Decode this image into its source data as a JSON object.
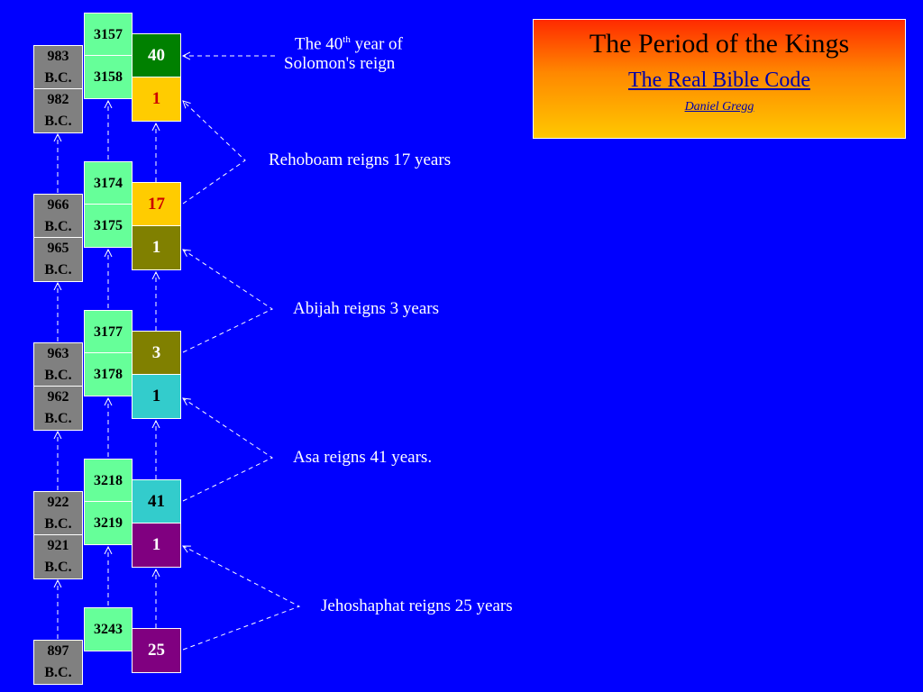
{
  "title": {
    "heading": "The Period of the Kings",
    "subtitle": "The Real Bible Code",
    "author": "Daniel Gregg"
  },
  "colors": {
    "background": "#0000ff",
    "bc_box": "#808080",
    "am_box": "#66ff99"
  },
  "groups": [
    {
      "bc": [
        [
          "983",
          "B.C."
        ],
        [
          "982",
          "B.C."
        ]
      ],
      "am": [
        "3157",
        "3158"
      ],
      "reign": [
        {
          "value": "40",
          "color": "#008000",
          "text": "#ffffff"
        },
        {
          "value": "1",
          "color": "#ffcc00",
          "text": "#cc0000"
        }
      ],
      "label_parts": {
        "pre": "The  40",
        "sup": "th",
        "post": "  year  of",
        "line2": "Solomon's reign"
      }
    },
    {
      "bc": [
        [
          "966",
          "B.C."
        ],
        [
          "965",
          "B.C."
        ]
      ],
      "am": [
        "3174",
        "3175"
      ],
      "reign": [
        {
          "value": "17",
          "color": "#ffcc00",
          "text": "#cc0000"
        },
        {
          "value": "1",
          "color": "#808000",
          "text": "#ffffff"
        }
      ],
      "label": "Rehoboam reigns 17 years"
    },
    {
      "bc": [
        [
          "963",
          "B.C."
        ],
        [
          "962",
          "B.C."
        ]
      ],
      "am": [
        "3177",
        "3178"
      ],
      "reign": [
        {
          "value": "3",
          "color": "#808000",
          "text": "#ffffff"
        },
        {
          "value": "1",
          "color": "#33cccc",
          "text": "#000000"
        }
      ],
      "label": "Abijah reigns 3 years"
    },
    {
      "bc": [
        [
          "922",
          "B.C."
        ],
        [
          "921",
          "B.C."
        ]
      ],
      "am": [
        "3218",
        "3219"
      ],
      "reign": [
        {
          "value": "41",
          "color": "#33cccc",
          "text": "#000000"
        },
        {
          "value": "1",
          "color": "#800080",
          "text": "#ffffff"
        }
      ],
      "label": "Asa reigns 41 years."
    },
    {
      "bc": [
        [
          "897",
          "B.C."
        ]
      ],
      "am": [
        "3243"
      ],
      "reign": [
        {
          "value": "25",
          "color": "#800080",
          "text": "#ffffff"
        }
      ],
      "label": "Jehoshaphat reigns 25 years"
    }
  ]
}
